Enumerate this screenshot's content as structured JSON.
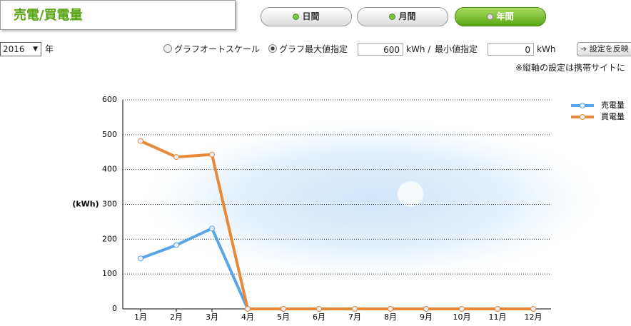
{
  "header": {
    "title": "売電/買電量"
  },
  "tabs": [
    "日間",
    "月間",
    "年間"
  ],
  "controls": {
    "year": "2016",
    "year_unit": "年",
    "auto_scale": "グラフオートスケール",
    "max_label": "グラフ最大値指定",
    "max_value": 600,
    "max_unit": "kWh /",
    "min_label": "最小値指定",
    "min_value": 0,
    "min_unit": "kWh",
    "apply": "設定を反映",
    "note": "※縦軸の設定は携帯サイトに"
  },
  "chart_data": {
    "type": "line",
    "y_label": "(kWh)",
    "categories": [
      "1月",
      "2月",
      "3月",
      "4月",
      "5月",
      "6月",
      "7月",
      "8月",
      "9月",
      "10月",
      "11月",
      "12月"
    ],
    "series": [
      {
        "name": "売電量",
        "color": "#5aa5e6",
        "values": [
          145,
          183,
          231,
          0,
          0,
          0,
          0,
          0,
          0,
          0,
          0,
          0
        ]
      },
      {
        "name": "買電量",
        "color": "#e8893a",
        "values": [
          482,
          436,
          443,
          0,
          0,
          0,
          0,
          0,
          0,
          0,
          0,
          0
        ]
      }
    ],
    "ylim": [
      0,
      600
    ],
    "yticks": [
      0,
      100,
      200,
      300,
      400,
      500,
      600
    ],
    "grid": true
  }
}
